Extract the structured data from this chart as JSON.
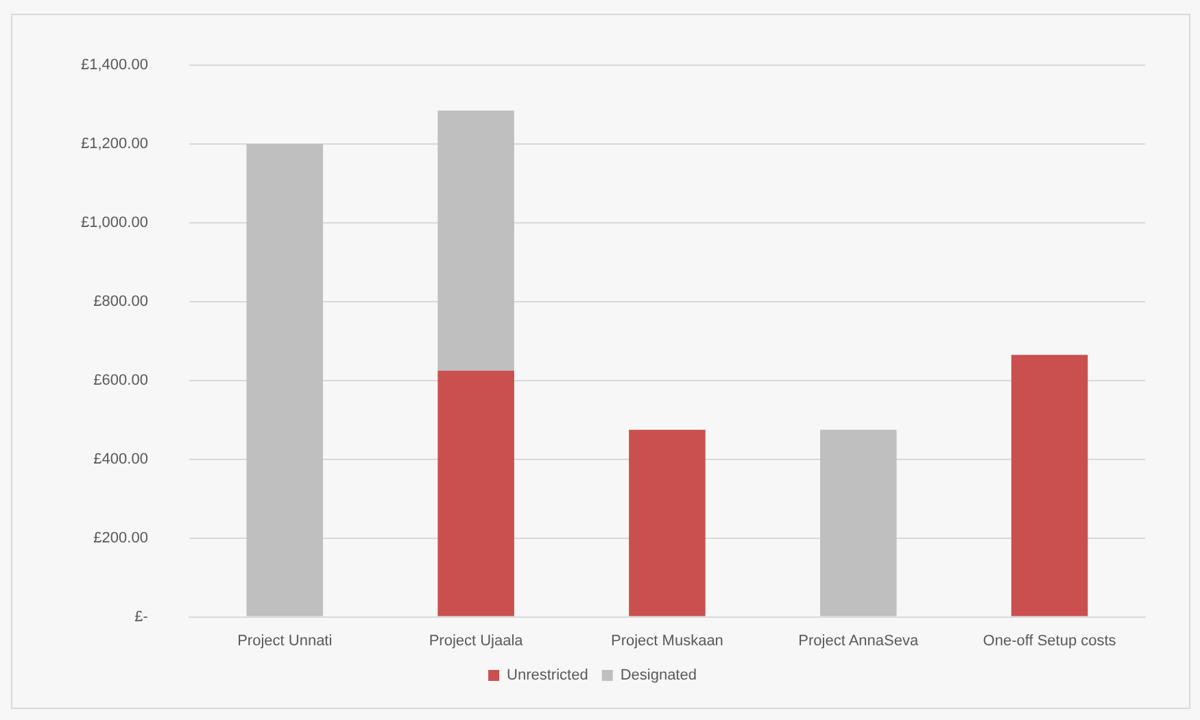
{
  "chart_data": {
    "type": "bar",
    "stacked": true,
    "categories": [
      "Project Unnati",
      "Project Ujaala",
      "Project Muskaan",
      "Project AnnaSeva",
      "One-off Setup costs"
    ],
    "series": [
      {
        "name": "Unrestricted",
        "color": "#c9504e",
        "values": [
          null,
          625,
          475,
          null,
          665
        ]
      },
      {
        "name": "Designated",
        "color": "#bfbfbf",
        "values": [
          1200,
          660,
          null,
          475,
          null
        ]
      }
    ],
    "ylim": [
      0,
      1400
    ],
    "yticks": [
      {
        "value": 0,
        "label": "£-"
      },
      {
        "value": 200,
        "label": "£200.00"
      },
      {
        "value": 400,
        "label": "£400.00"
      },
      {
        "value": 600,
        "label": "£600.00"
      },
      {
        "value": 800,
        "label": "£800.00"
      },
      {
        "value": 1000,
        "label": "£1,000.00"
      },
      {
        "value": 1200,
        "label": "£1,200.00"
      },
      {
        "value": 1400,
        "label": "£1,400.00"
      }
    ],
    "grid": "y",
    "legend": "bottom"
  }
}
